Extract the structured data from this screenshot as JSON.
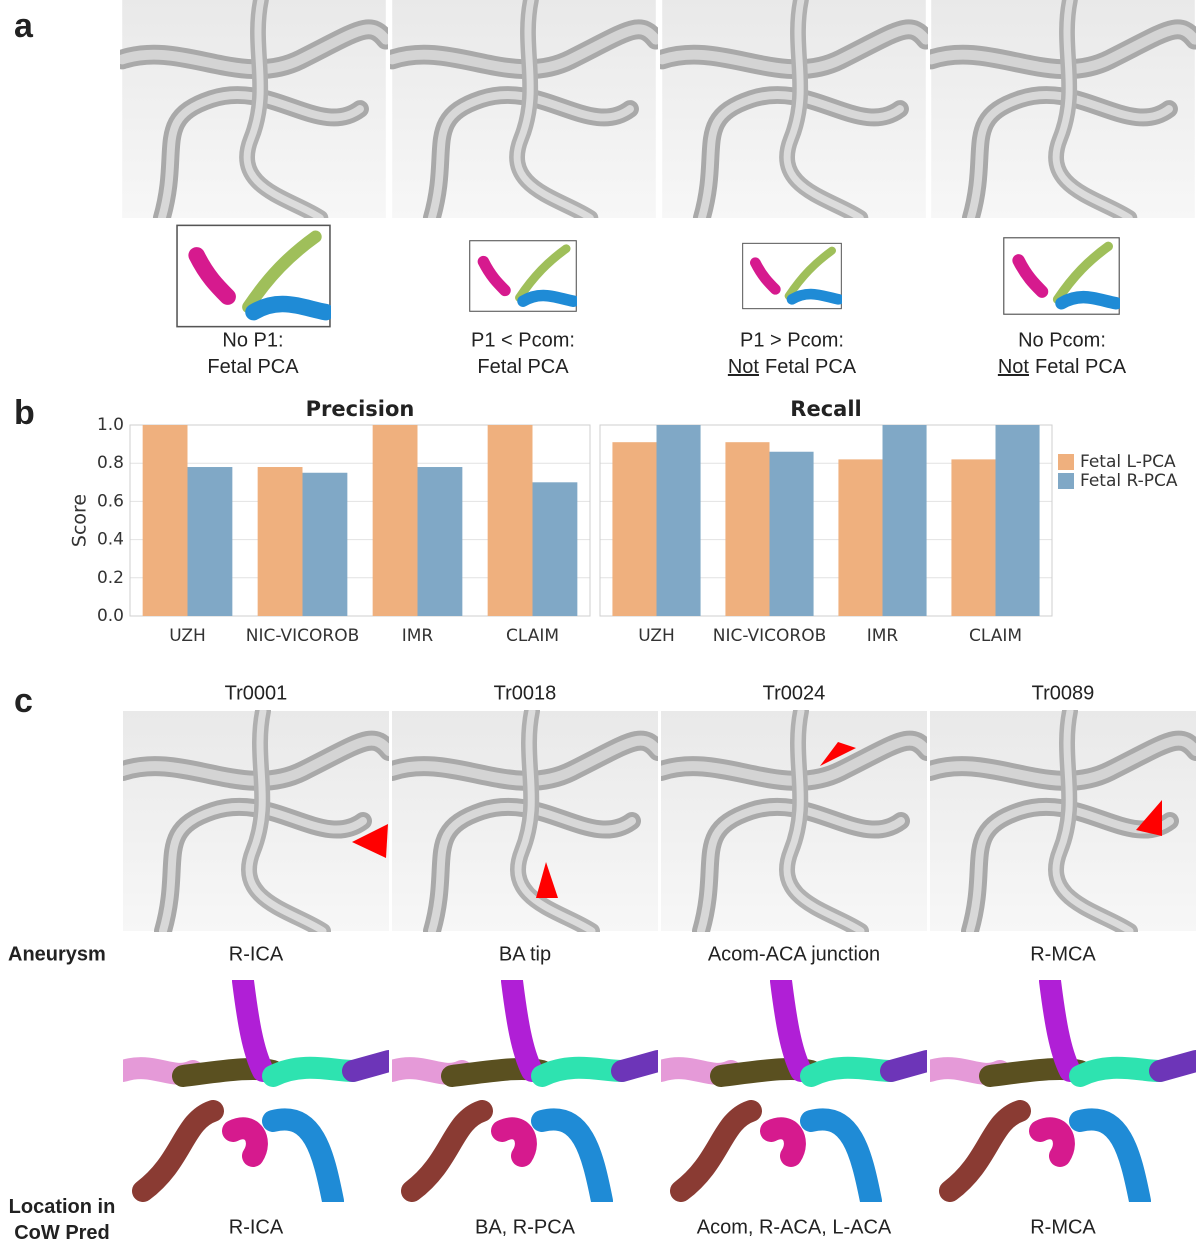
{
  "figure_labels": [
    "a",
    "b",
    "c"
  ],
  "panel_a": {
    "cases": [
      {
        "line1": "No P1:",
        "line2": "Fetal PCA"
      },
      {
        "line1": "P1 < Pcom:",
        "line2": "Fetal PCA"
      },
      {
        "line1": "P1 > Pcom:",
        "underlined": "Not",
        "line2": "Fetal PCA"
      },
      {
        "line1": "No Pcom:",
        "underlined": "Not",
        "line2": "Fetal PCA"
      }
    ]
  },
  "chart_data": [
    {
      "type": "bar",
      "title": "Precision",
      "ylabel": "Score",
      "categories": [
        "UZH",
        "NIC-VICOROB",
        "IMR",
        "CLAIM"
      ],
      "series": [
        {
          "name": "Fetal L-PCA",
          "color": "#efb07e",
          "values": [
            1.0,
            0.78,
            1.0,
            1.0
          ]
        },
        {
          "name": "Fetal R-PCA",
          "color": "#80a8c6",
          "values": [
            0.78,
            0.75,
            0.78,
            0.7
          ]
        }
      ],
      "ylim": [
        0,
        1
      ],
      "yticks": [
        {
          "value": 0,
          "label": "0.0"
        },
        {
          "value": 0.2,
          "label": "0.2"
        },
        {
          "value": 0.4,
          "label": "0.4"
        },
        {
          "value": 0.6,
          "label": "0.6"
        },
        {
          "value": 0.8,
          "label": "0.8"
        },
        {
          "value": 1,
          "label": "1.0"
        }
      ],
      "grid": true
    },
    {
      "type": "bar",
      "title": "Recall",
      "categories": [
        "UZH",
        "NIC-VICOROB",
        "IMR",
        "CLAIM"
      ],
      "series": [
        {
          "color": "#efb07e",
          "values": [
            0.91,
            0.91,
            0.82,
            0.82
          ]
        },
        {
          "color": "#80a8c6",
          "values": [
            1.0,
            0.86,
            1.0,
            1.0
          ]
        }
      ],
      "ylim": [
        0,
        1
      ],
      "yticks": [
        0,
        0.2,
        0.4,
        0.6,
        0.8,
        1
      ],
      "grid": true
    }
  ],
  "panel_c": {
    "row_labels": {
      "aneurysm": "Aneurysm",
      "location": "Location in CoW Pred"
    },
    "cases": [
      {
        "id": "Tr0001",
        "aneurysm": "R-ICA",
        "prediction": "R-ICA"
      },
      {
        "id": "Tr0018",
        "aneurysm": "BA tip",
        "prediction": "BA, R-PCA"
      },
      {
        "id": "Tr0024",
        "aneurysm": "Acom-ACA junction",
        "prediction": "Acom, R-ACA, L-ACA"
      },
      {
        "id": "Tr0089",
        "aneurysm": "R-MCA",
        "prediction": "R-MCA"
      }
    ]
  }
}
